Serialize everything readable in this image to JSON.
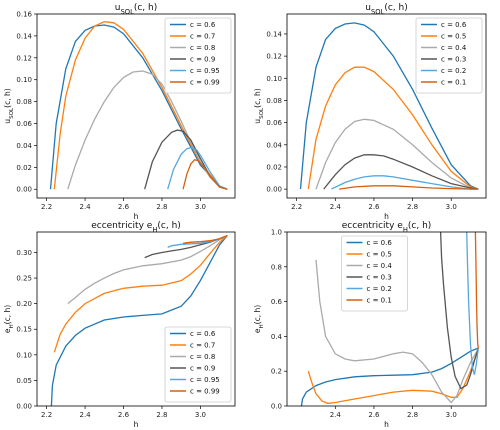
{
  "chart_data": [
    {
      "type": "line",
      "title": "u_SOL(c, h)",
      "xlabel": "h",
      "ylabel": "u_SOL(c, h)",
      "xlim": [
        2.15,
        3.18
      ],
      "ylim": [
        -0.008,
        0.16
      ],
      "xticks": [
        2.2,
        2.4,
        2.6,
        2.8,
        3.0
      ],
      "xtick_labels": [
        "2.2",
        "2.4",
        "2.6",
        "2.8",
        "3.0"
      ],
      "yticks": [
        0.0,
        0.02,
        0.04,
        0.06,
        0.08,
        0.1,
        0.12,
        0.14,
        0.16
      ],
      "ytick_labels": [
        "0.00",
        "0.02",
        "0.04",
        "0.06",
        "0.08",
        "0.10",
        "0.12",
        "0.14",
        "0.16"
      ],
      "grid": false,
      "legend": "top-right",
      "series": [
        {
          "name": "c = 0.6",
          "color": "#1f77b4",
          "x": [
            2.22,
            2.25,
            2.3,
            2.35,
            2.4,
            2.45,
            2.5,
            2.55,
            2.6,
            2.7,
            2.8,
            2.9,
            3.0,
            3.1,
            3.14
          ],
          "y": [
            0.0,
            0.06,
            0.11,
            0.135,
            0.145,
            0.149,
            0.15,
            0.148,
            0.142,
            0.12,
            0.09,
            0.055,
            0.022,
            0.003,
            0.0
          ]
        },
        {
          "name": "c = 0.7",
          "color": "#ff7f0e",
          "x": [
            2.24,
            2.27,
            2.3,
            2.35,
            2.4,
            2.45,
            2.5,
            2.55,
            2.6,
            2.7,
            2.8,
            2.9,
            3.0,
            3.1,
            3.14
          ],
          "y": [
            0.0,
            0.05,
            0.085,
            0.118,
            0.138,
            0.149,
            0.153,
            0.152,
            0.146,
            0.124,
            0.093,
            0.058,
            0.024,
            0.003,
            0.0
          ]
        },
        {
          "name": "c = 0.8",
          "color": "#aaaaaa",
          "x": [
            2.31,
            2.35,
            2.4,
            2.45,
            2.5,
            2.55,
            2.6,
            2.65,
            2.7,
            2.75,
            2.8,
            2.85,
            2.9,
            2.95,
            3.0,
            3.05,
            3.1,
            3.14
          ],
          "y": [
            0.0,
            0.022,
            0.045,
            0.064,
            0.08,
            0.093,
            0.102,
            0.107,
            0.108,
            0.105,
            0.096,
            0.08,
            0.062,
            0.043,
            0.025,
            0.011,
            0.002,
            0.0
          ]
        },
        {
          "name": "c = 0.9",
          "color": "#555555",
          "x": [
            2.71,
            2.75,
            2.8,
            2.85,
            2.88,
            2.91,
            2.95,
            3.0,
            3.05,
            3.1,
            3.14
          ],
          "y": [
            0.0,
            0.025,
            0.043,
            0.052,
            0.054,
            0.053,
            0.045,
            0.028,
            0.012,
            0.002,
            0.0
          ]
        },
        {
          "name": "c = 0.95",
          "color": "#56a7e0",
          "x": [
            2.83,
            2.86,
            2.9,
            2.93,
            2.95,
            2.98,
            3.0,
            3.05,
            3.1,
            3.14
          ],
          "y": [
            0.0,
            0.018,
            0.032,
            0.037,
            0.038,
            0.036,
            0.031,
            0.016,
            0.003,
            0.0
          ]
        },
        {
          "name": "c = 0.99",
          "color": "#d95f0e",
          "x": [
            2.91,
            2.93,
            2.95,
            2.97,
            2.99,
            3.02,
            3.05,
            3.1,
            3.14
          ],
          "y": [
            0.0,
            0.014,
            0.023,
            0.027,
            0.026,
            0.02,
            0.012,
            0.002,
            0.0
          ]
        }
      ]
    },
    {
      "type": "line",
      "title": "u_SOL(c, h)",
      "xlabel": "h",
      "ylabel": "u_SOL(c, h)",
      "xlim": [
        2.15,
        3.18
      ],
      "ylim": [
        -0.008,
        0.158
      ],
      "xticks": [
        2.2,
        2.4,
        2.6,
        2.8,
        3.0
      ],
      "xtick_labels": [
        "2.2",
        "2.4",
        "2.6",
        "2.8",
        "3.0"
      ],
      "yticks": [
        0.0,
        0.02,
        0.04,
        0.06,
        0.08,
        0.1,
        0.12,
        0.14
      ],
      "ytick_labels": [
        "0.00",
        "0.02",
        "0.04",
        "0.06",
        "0.08",
        "0.10",
        "0.12",
        "0.14"
      ],
      "grid": false,
      "legend": "top-right",
      "series": [
        {
          "name": "c = 0.6",
          "color": "#1f77b4",
          "x": [
            2.22,
            2.25,
            2.3,
            2.35,
            2.4,
            2.45,
            2.5,
            2.55,
            2.6,
            2.7,
            2.8,
            2.9,
            3.0,
            3.1,
            3.14
          ],
          "y": [
            0.0,
            0.06,
            0.11,
            0.135,
            0.145,
            0.149,
            0.15,
            0.148,
            0.142,
            0.12,
            0.09,
            0.055,
            0.022,
            0.003,
            0.0
          ]
        },
        {
          "name": "c = 0.5",
          "color": "#ff7f0e",
          "x": [
            2.26,
            2.3,
            2.35,
            2.4,
            2.45,
            2.5,
            2.55,
            2.6,
            2.7,
            2.8,
            2.9,
            3.0,
            3.1,
            3.14
          ],
          "y": [
            0.0,
            0.045,
            0.075,
            0.094,
            0.105,
            0.11,
            0.11,
            0.106,
            0.09,
            0.067,
            0.04,
            0.016,
            0.002,
            0.0
          ]
        },
        {
          "name": "c = 0.4",
          "color": "#aaaaaa",
          "x": [
            2.3,
            2.35,
            2.4,
            2.45,
            2.5,
            2.55,
            2.6,
            2.7,
            2.8,
            2.9,
            3.0,
            3.1,
            3.14
          ],
          "y": [
            0.0,
            0.024,
            0.042,
            0.054,
            0.061,
            0.063,
            0.062,
            0.054,
            0.04,
            0.024,
            0.01,
            0.001,
            0.0
          ]
        },
        {
          "name": "c = 0.3",
          "color": "#555555",
          "x": [
            2.34,
            2.4,
            2.45,
            2.5,
            2.55,
            2.6,
            2.65,
            2.7,
            2.8,
            2.9,
            3.0,
            3.1,
            3.14
          ],
          "y": [
            0.0,
            0.013,
            0.022,
            0.028,
            0.031,
            0.031,
            0.03,
            0.027,
            0.02,
            0.012,
            0.005,
            0.001,
            0.0
          ]
        },
        {
          "name": "c = 0.2",
          "color": "#56a7e0",
          "x": [
            2.38,
            2.45,
            2.5,
            2.55,
            2.6,
            2.65,
            2.7,
            2.8,
            2.9,
            3.0,
            3.1,
            3.14
          ],
          "y": [
            0.0,
            0.006,
            0.009,
            0.011,
            0.012,
            0.012,
            0.011,
            0.008,
            0.005,
            0.002,
            0.0,
            0.0
          ]
        },
        {
          "name": "c = 0.1",
          "color": "#d95f0e",
          "x": [
            2.42,
            2.5,
            2.6,
            2.7,
            2.8,
            2.9,
            3.0,
            3.1,
            3.14
          ],
          "y": [
            0.0,
            0.002,
            0.003,
            0.003,
            0.002,
            0.001,
            0.0005,
            0.0,
            0.0
          ]
        }
      ]
    },
    {
      "type": "line",
      "title": "eccentricity e_H(c, h)",
      "xlabel": "h",
      "ylabel": "e_H(c, h)",
      "xlim": [
        2.15,
        3.18
      ],
      "ylim": [
        0.0,
        0.34
      ],
      "xticks": [
        2.2,
        2.4,
        2.6,
        2.8,
        3.0
      ],
      "xtick_labels": [
        "2.2",
        "2.4",
        "2.6",
        "2.8",
        "3.0"
      ],
      "yticks": [
        0.0,
        0.05,
        0.1,
        0.15,
        0.2,
        0.25,
        0.3
      ],
      "ytick_labels": [
        "0.00",
        "0.05",
        "0.10",
        "0.15",
        "0.20",
        "0.25",
        "0.30"
      ],
      "grid": false,
      "legend": "bottom-right",
      "series": [
        {
          "name": "c = 0.6",
          "color": "#1f77b4",
          "x": [
            2.225,
            2.23,
            2.25,
            2.3,
            2.35,
            2.4,
            2.5,
            2.6,
            2.7,
            2.8,
            2.9,
            2.95,
            3.0,
            3.05,
            3.1,
            3.14
          ],
          "y": [
            0.0,
            0.04,
            0.08,
            0.117,
            0.138,
            0.152,
            0.168,
            0.174,
            0.177,
            0.18,
            0.195,
            0.215,
            0.245,
            0.28,
            0.315,
            0.333
          ]
        },
        {
          "name": "c = 0.7",
          "color": "#ff7f0e",
          "x": [
            2.24,
            2.27,
            2.3,
            2.35,
            2.4,
            2.5,
            2.6,
            2.7,
            2.8,
            2.9,
            2.95,
            3.0,
            3.05,
            3.1,
            3.14
          ],
          "y": [
            0.105,
            0.14,
            0.16,
            0.183,
            0.2,
            0.22,
            0.23,
            0.234,
            0.236,
            0.245,
            0.258,
            0.275,
            0.298,
            0.32,
            0.333
          ]
        },
        {
          "name": "c = 0.8",
          "color": "#aaaaaa",
          "x": [
            2.31,
            2.35,
            2.4,
            2.45,
            2.5,
            2.55,
            2.6,
            2.7,
            2.8,
            2.9,
            2.95,
            3.0,
            3.05,
            3.1,
            3.14
          ],
          "y": [
            0.2,
            0.212,
            0.228,
            0.24,
            0.25,
            0.259,
            0.266,
            0.274,
            0.278,
            0.285,
            0.292,
            0.302,
            0.313,
            0.325,
            0.333
          ]
        },
        {
          "name": "c = 0.9",
          "color": "#555555",
          "x": [
            2.71,
            2.75,
            2.8,
            2.85,
            2.9,
            2.95,
            3.0,
            3.05,
            3.1,
            3.14
          ],
          "y": [
            0.29,
            0.296,
            0.3,
            0.303,
            0.306,
            0.31,
            0.315,
            0.32,
            0.327,
            0.333
          ]
        },
        {
          "name": "c = 0.95",
          "color": "#56a7e0",
          "x": [
            2.83,
            2.85,
            2.9,
            2.95,
            3.0,
            3.05,
            3.1,
            3.14
          ],
          "y": [
            0.31,
            0.313,
            0.316,
            0.317,
            0.318,
            0.321,
            0.327,
            0.333
          ]
        },
        {
          "name": "c = 0.99",
          "color": "#d95f0e",
          "x": [
            2.91,
            2.95,
            3.0,
            3.05,
            3.1,
            3.14
          ],
          "y": [
            0.318,
            0.32,
            0.321,
            0.323,
            0.327,
            0.333
          ]
        }
      ]
    },
    {
      "type": "line",
      "title": "eccentricity e_H(c, h)",
      "xlabel": "h",
      "ylabel": "e_H(c, h)",
      "xlim": [
        2.15,
        3.18
      ],
      "ylim": [
        0.0,
        1.0
      ],
      "xticks": [
        2.4,
        2.6,
        2.8,
        3.0
      ],
      "xtick_labels": [
        "2.4",
        "2.6",
        "2.8",
        "3.0"
      ],
      "yticks": [
        0.0,
        0.2,
        0.4,
        0.6,
        0.8,
        1.0
      ],
      "ytick_labels": [
        "0.0",
        "0.2",
        "0.4",
        "0.6",
        "0.8",
        "1.0"
      ],
      "grid": false,
      "legend": "top-center",
      "series": [
        {
          "name": "c = 0.6",
          "color": "#1f77b4",
          "x": [
            2.225,
            2.23,
            2.25,
            2.3,
            2.35,
            2.4,
            2.5,
            2.6,
            2.7,
            2.8,
            2.9,
            2.95,
            3.0,
            3.05,
            3.1,
            3.14
          ],
          "y": [
            0.0,
            0.04,
            0.08,
            0.117,
            0.138,
            0.152,
            0.168,
            0.174,
            0.177,
            0.18,
            0.195,
            0.215,
            0.245,
            0.28,
            0.315,
            0.333
          ]
        },
        {
          "name": "c = 0.5",
          "color": "#ff7f0e",
          "x": [
            2.26,
            2.28,
            2.3,
            2.33,
            2.36,
            2.4,
            2.5,
            2.6,
            2.7,
            2.8,
            2.9,
            2.95,
            3.0,
            3.03,
            3.06,
            3.1,
            3.14
          ],
          "y": [
            0.2,
            0.13,
            0.07,
            0.03,
            0.015,
            0.02,
            0.04,
            0.06,
            0.08,
            0.09,
            0.085,
            0.07,
            0.05,
            0.05,
            0.1,
            0.2,
            0.33
          ]
        },
        {
          "name": "c = 0.4",
          "color": "#aaaaaa",
          "x": [
            2.3,
            2.32,
            2.35,
            2.4,
            2.45,
            2.5,
            2.6,
            2.7,
            2.75,
            2.8,
            2.85,
            2.9,
            2.95,
            3.0,
            3.03,
            3.06,
            3.1,
            3.14
          ],
          "y": [
            0.84,
            0.6,
            0.4,
            0.3,
            0.27,
            0.26,
            0.27,
            0.3,
            0.31,
            0.3,
            0.25,
            0.18,
            0.08,
            0.02,
            0.06,
            0.15,
            0.25,
            0.33
          ]
        },
        {
          "name": "c = 0.3",
          "color": "#555555",
          "x": [
            2.945,
            2.95,
            2.96,
            2.98,
            3.0,
            3.02,
            3.05,
            3.08,
            3.1,
            3.12,
            3.14
          ],
          "y": [
            1.0,
            0.85,
            0.7,
            0.45,
            0.28,
            0.17,
            0.1,
            0.12,
            0.18,
            0.26,
            0.33
          ]
        },
        {
          "name": "c = 0.2",
          "color": "#56a7e0",
          "x": [
            3.08,
            3.085,
            3.09,
            3.1,
            3.11,
            3.12,
            3.13,
            3.14
          ],
          "y": [
            1.0,
            0.8,
            0.6,
            0.35,
            0.22,
            0.18,
            0.24,
            0.33
          ]
        },
        {
          "name": "c = 0.1",
          "color": "#d95f0e",
          "x": [
            3.125,
            3.128,
            3.131,
            3.134,
            3.137,
            3.14
          ],
          "y": [
            1.0,
            0.8,
            0.6,
            0.45,
            0.36,
            0.33
          ]
        }
      ]
    }
  ]
}
